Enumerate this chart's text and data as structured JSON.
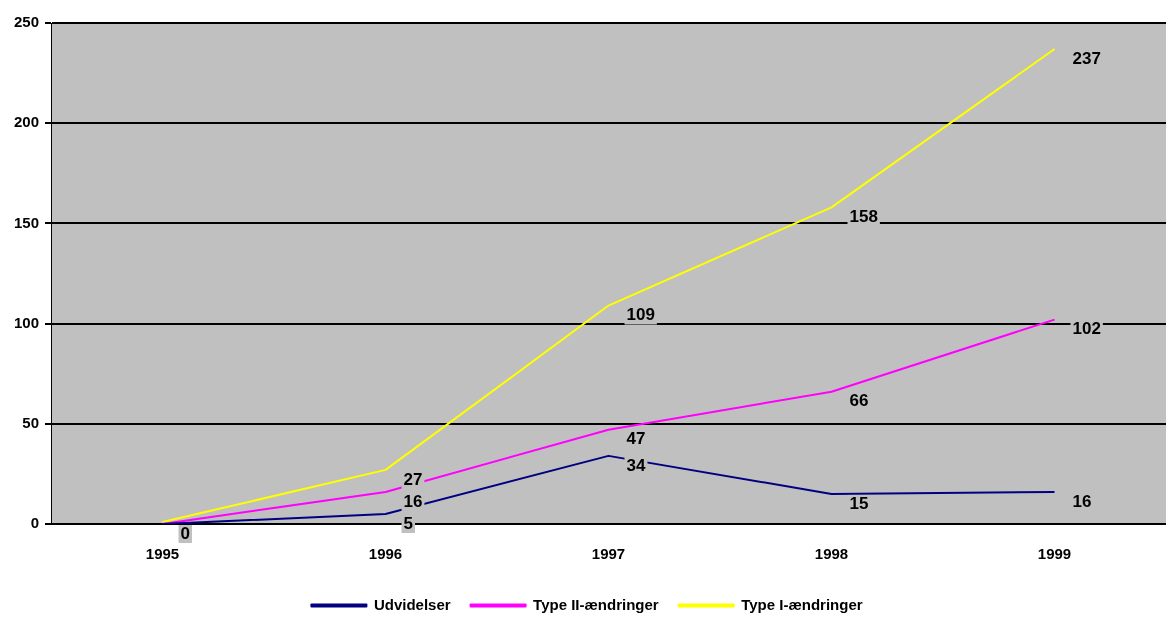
{
  "chart_data": {
    "type": "line",
    "categories": [
      "1995",
      "1996",
      "1997",
      "1998",
      "1999"
    ],
    "series": [
      {
        "name": "Udvidelser",
        "color": "#000080",
        "values": [
          0,
          5,
          34,
          15,
          16
        ],
        "value_labels": [
          "0",
          "5",
          "34",
          "15",
          "16"
        ]
      },
      {
        "name": "Type II-ændringer",
        "color": "#ff00ff",
        "values": [
          0,
          16,
          47,
          66,
          102
        ],
        "value_labels": [
          null,
          "16",
          "47",
          "66",
          "102"
        ]
      },
      {
        "name": "Type I-ændringer",
        "color": "#ffff00",
        "values": [
          1,
          27,
          109,
          158,
          237
        ],
        "value_labels": [
          null,
          "27",
          "109",
          "158",
          "237"
        ]
      }
    ],
    "ylim": [
      0,
      250
    ],
    "yticks": [
      0,
      50,
      100,
      150,
      200,
      250
    ],
    "grid": "y",
    "legend": "bottom",
    "marker": "none",
    "line_style": "solid"
  }
}
